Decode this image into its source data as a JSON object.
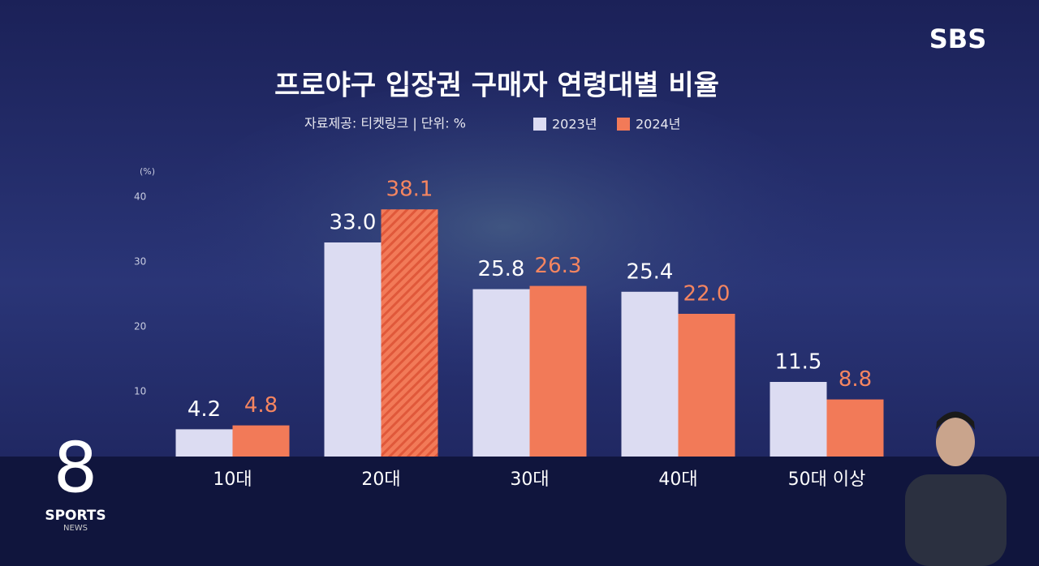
{
  "chart_data": {
    "type": "bar",
    "title": "프로야구 입장권 구매자 연령대별 비율",
    "subtitle": "자료제공: 티켓링크 | 단위: %",
    "y_label": "(%)",
    "categories": [
      "10대",
      "20대",
      "30대",
      "40대",
      "50대 이상"
    ],
    "series": [
      {
        "name": "2023년",
        "color": "#dcdcf2",
        "label_color": "#ffffff",
        "values": [
          4.2,
          33.0,
          25.8,
          25.4,
          11.5
        ],
        "value_labels": [
          "4.2",
          "33.0",
          "25.8",
          "25.4",
          "11.5"
        ],
        "hatched": [
          false,
          false,
          false,
          false,
          false
        ]
      },
      {
        "name": "2024년",
        "color": "#f27a58",
        "label_color": "#f58560",
        "values": [
          4.8,
          38.1,
          26.3,
          22.0,
          8.8
        ],
        "value_labels": [
          "4.8",
          "38.1",
          "26.3",
          "22.0",
          "8.8"
        ],
        "hatched": [
          false,
          true,
          false,
          false,
          false
        ]
      }
    ],
    "ylim": [
      0,
      45
    ],
    "yticks": [
      10,
      20,
      30,
      40
    ],
    "grid": false
  },
  "branding": {
    "channel": "SBS",
    "program_mark": "8",
    "program_name": "SPORTS",
    "program_sub": "NEWS"
  }
}
